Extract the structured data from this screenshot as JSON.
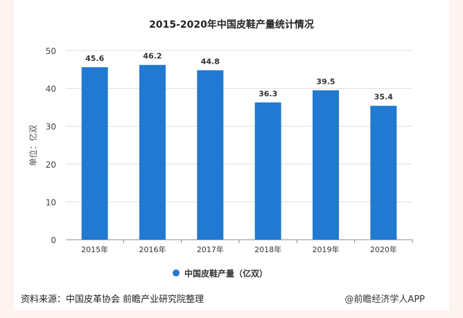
{
  "chart_data": {
    "type": "bar",
    "title": "2015-2020年中国皮鞋产量统计情况",
    "categories": [
      "2015年",
      "2016年",
      "2017年",
      "2018年",
      "2019年",
      "2020年"
    ],
    "values": [
      45.6,
      46.2,
      44.8,
      36.3,
      39.5,
      35.4
    ],
    "value_labels": [
      "45.6",
      "46.2",
      "44.8",
      "36.3",
      "39.5",
      "35.4"
    ],
    "ylabel": "单位：亿双",
    "xlabel": "",
    "ylim": [
      0,
      50
    ],
    "yticks": [
      "0",
      "10",
      "20",
      "30",
      "40",
      "50"
    ],
    "grid": true,
    "legend": {
      "position": "bottom",
      "entries": [
        "中国皮鞋产量（亿双）"
      ]
    },
    "color": "#2179d2"
  },
  "footer": {
    "source": "资料来源：中国皮革协会 前瞻产业研究院整理",
    "credit": "@前瞻经济学人APP"
  }
}
